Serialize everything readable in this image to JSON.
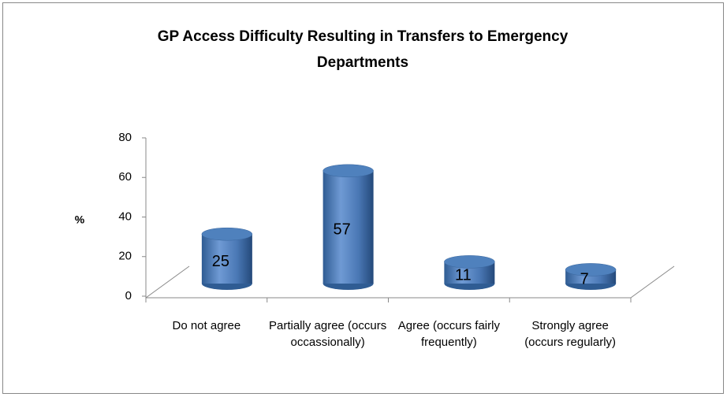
{
  "chart_data": {
    "type": "bar",
    "title": "GP Access Difficulty Resulting in Transfers to Emergency Departments",
    "y_label": "%",
    "categories": [
      "Do not agree",
      "Partially agree (occurs occassionally)",
      "Agree (occurs fairly frequently)",
      "Strongly agree (occurs regularly)"
    ],
    "values": [
      25,
      57,
      11,
      7
    ],
    "color": "#4f81bd",
    "ylim": [
      0,
      80
    ],
    "yticks": [
      0,
      20,
      40,
      60,
      80
    ]
  }
}
